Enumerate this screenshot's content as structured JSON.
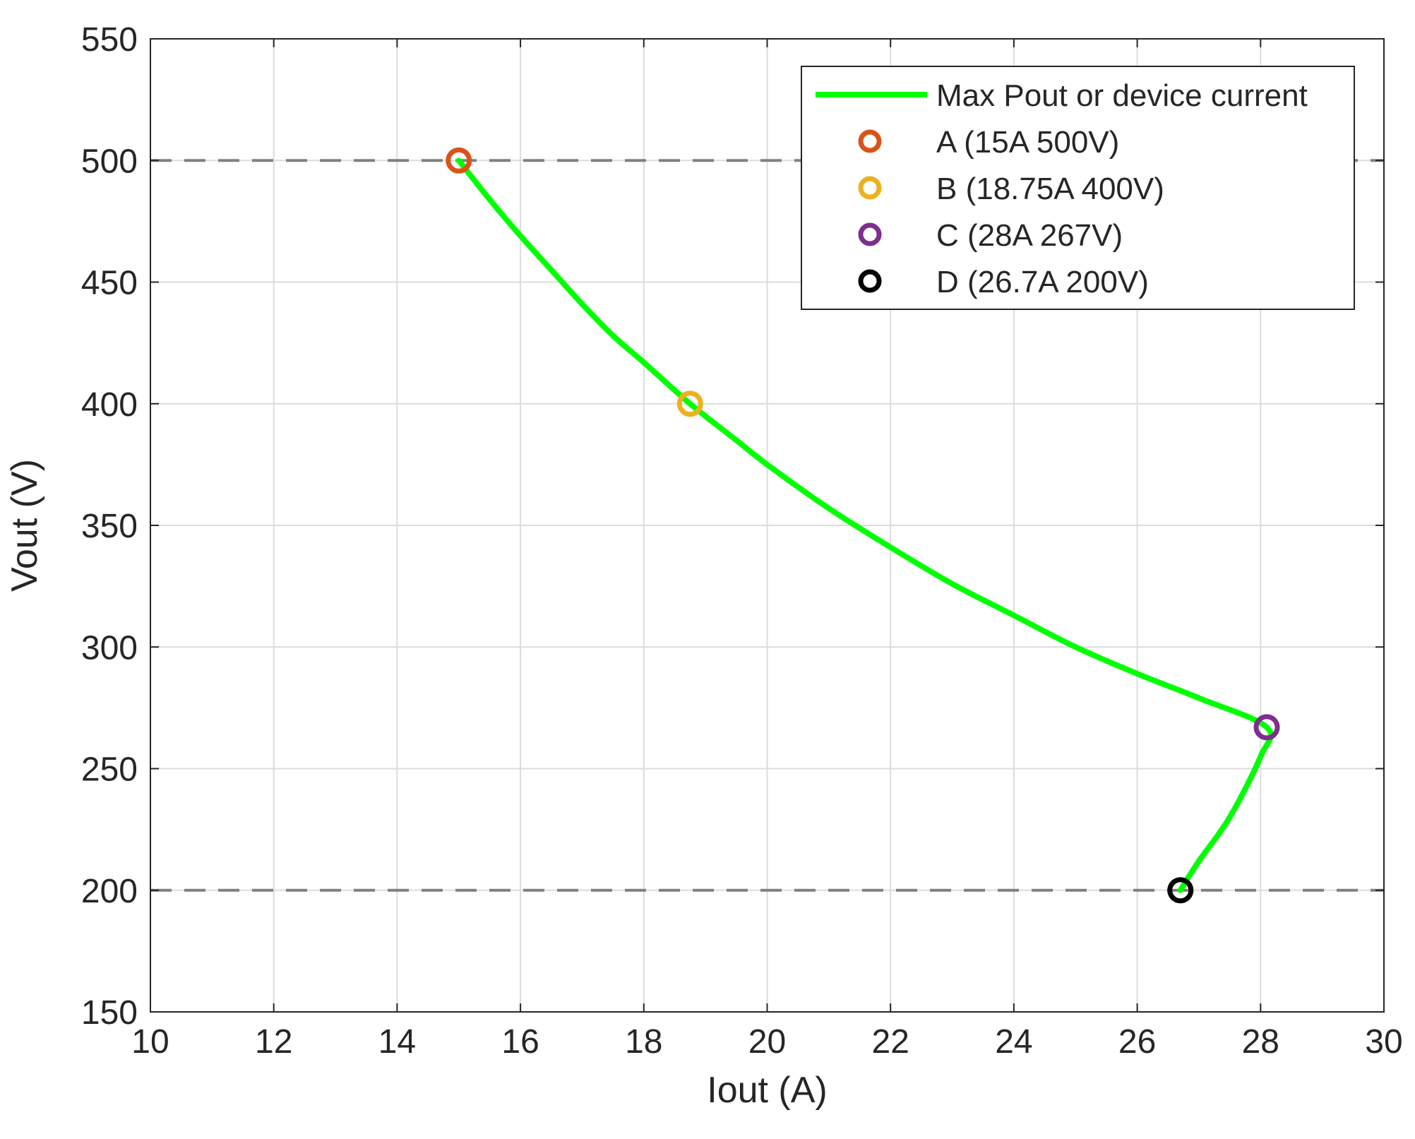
{
  "chart_data": {
    "type": "line",
    "title": "",
    "xlabel": "Iout (A)",
    "ylabel": "Vout (V)",
    "xlim": [
      10,
      30
    ],
    "ylim": [
      150,
      550
    ],
    "xticks": [
      "10",
      "12",
      "14",
      "16",
      "18",
      "20",
      "22",
      "24",
      "26",
      "28",
      "30"
    ],
    "yticks": [
      "150",
      "200",
      "250",
      "300",
      "350",
      "400",
      "450",
      "500",
      "550"
    ],
    "grid": true,
    "legend_position": "top-right",
    "reference_lines": [
      {
        "axis": "y",
        "value": 500,
        "style": "dashed",
        "color": "#808080"
      },
      {
        "axis": "y",
        "value": 200,
        "style": "dashed",
        "color": "#808080"
      }
    ],
    "series": [
      {
        "name": "Max Pout or device current",
        "kind": "line",
        "color": "#00ff00",
        "x": [
          15,
          15.5,
          16,
          16.5,
          17,
          17.5,
          18,
          18.75,
          19.5,
          20,
          21,
          22,
          23,
          24,
          25,
          26,
          27,
          28.1,
          28,
          27.5,
          27,
          26.7
        ],
        "y": [
          500,
          484,
          469,
          455,
          441,
          428,
          417,
          400,
          385,
          375,
          357,
          341,
          326,
          313,
          300,
          289,
          279,
          267,
          255,
          230,
          212,
          200
        ]
      },
      {
        "name": "A (15A 500V)",
        "kind": "marker",
        "color": "#d95319",
        "x": [
          15
        ],
        "y": [
          500
        ]
      },
      {
        "name": "B (18.75A 400V)",
        "kind": "marker",
        "color": "#edb120",
        "x": [
          18.75
        ],
        "y": [
          400
        ]
      },
      {
        "name": "C (28A 267V)",
        "kind": "marker",
        "color": "#7e2f8e",
        "x": [
          28.1
        ],
        "y": [
          267
        ]
      },
      {
        "name": "D (26.7A 200V)",
        "kind": "marker",
        "color": "#000000",
        "x": [
          26.7
        ],
        "y": [
          200
        ]
      }
    ]
  }
}
